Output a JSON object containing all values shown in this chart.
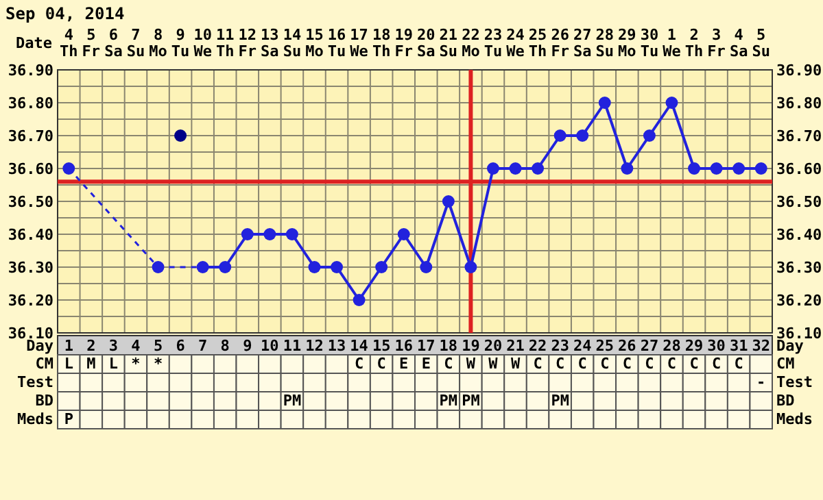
{
  "chart_data": [
    {
      "type": "line",
      "title": "Sep 04, 2014",
      "xlabel": "Date",
      "categories": [
        "4 Th",
        "5 Fr",
        "6 Sa",
        "7 Su",
        "8 Mo",
        "9 Tu",
        "10 We",
        "11 Th",
        "12 Fr",
        "13 Sa",
        "14 Su",
        "15 Mo",
        "16 Tu",
        "17 We",
        "18 Th",
        "19 Fr",
        "20 Sa",
        "21 Su",
        "22 Mo",
        "23 Tu",
        "24 We",
        "25 Th",
        "26 Fr",
        "27 Sa",
        "28 Su",
        "29 Mo",
        "30 Tu",
        "1 We",
        "2 Th",
        "3 Fr",
        "4 Sa",
        "5 Su"
      ],
      "series": [
        {
          "type": "line",
          "color": "#2222dd",
          "values": [
            36.6,
            null,
            null,
            null,
            36.3,
            null,
            36.3,
            36.3,
            36.4,
            36.4,
            36.4,
            36.3,
            36.3,
            36.2,
            36.3,
            36.4,
            36.3,
            36.5,
            36.3,
            36.6,
            36.6,
            36.6,
            36.7,
            36.7,
            36.8,
            36.6,
            36.7,
            36.8,
            36.6,
            36.6,
            36.6,
            36.6
          ]
        },
        {
          "type": "scatter",
          "color": "#000088",
          "values": [
            null,
            null,
            null,
            null,
            null,
            36.7,
            null,
            null,
            null,
            null,
            null,
            null,
            null,
            null,
            null,
            null,
            null,
            null,
            null,
            null,
            null,
            null,
            null,
            null,
            null,
            null,
            null,
            null,
            null,
            null,
            null,
            null
          ]
        }
      ],
      "marker": "circle",
      "ylim": [
        36.1,
        36.9
      ],
      "yticks": [
        {
          "value": 36.1,
          "label": "36.10"
        },
        {
          "value": 36.2,
          "label": "36.20"
        },
        {
          "value": 36.3,
          "label": "36.30"
        },
        {
          "value": 36.4,
          "label": "36.40"
        },
        {
          "value": 36.5,
          "label": "36.50"
        },
        {
          "value": 36.6,
          "label": "36.60"
        },
        {
          "value": 36.7,
          "label": "36.70"
        },
        {
          "value": 36.8,
          "label": "36.80"
        },
        {
          "value": 36.9,
          "label": "36.90"
        }
      ],
      "y2lim": [
        36.1,
        36.9
      ],
      "y2ticks": [
        {
          "value": 36.1,
          "label": "36.10"
        },
        {
          "value": 36.2,
          "label": "36.20"
        },
        {
          "value": 36.3,
          "label": "36.30"
        },
        {
          "value": 36.4,
          "label": "36.40"
        },
        {
          "value": 36.5,
          "label": "36.50"
        },
        {
          "value": 36.6,
          "label": "36.60"
        },
        {
          "value": 36.7,
          "label": "36.70"
        },
        {
          "value": 36.8,
          "label": "36.80"
        },
        {
          "value": 36.9,
          "label": "36.90"
        }
      ],
      "grid": true,
      "x2label": "Day",
      "x2lim": [
        0.5,
        32.5
      ],
      "x2ticks": [
        1,
        2,
        3,
        4,
        5,
        6,
        7,
        8,
        9,
        10,
        11,
        12,
        13,
        14,
        15,
        16,
        17,
        18,
        19,
        20,
        21,
        22,
        23,
        24,
        25,
        26,
        27,
        28,
        29,
        30,
        31,
        32
      ],
      "ref_lines": [
        {
          "axis": "y",
          "value": 36.56,
          "color": "#dd2222"
        },
        {
          "axis": "x",
          "value": "22 Mo",
          "color": "#dd2222"
        }
      ]
    },
    {
      "type": "other",
      "y_categories": [
        "CM",
        "Test",
        "BD",
        "Meds"
      ],
      "cell_labels": [
        [
          "L",
          "M",
          "L",
          "*",
          "*",
          null,
          null,
          null,
          null,
          null,
          null,
          null,
          null,
          "C",
          "C",
          "E",
          "E",
          "C",
          "W",
          "W",
          "W",
          "C",
          "C",
          "C",
          "C",
          "C",
          "C",
          "C",
          "C",
          "C",
          "C",
          null
        ],
        [
          null,
          null,
          null,
          null,
          null,
          null,
          null,
          null,
          null,
          null,
          null,
          null,
          null,
          null,
          null,
          null,
          null,
          null,
          null,
          null,
          null,
          null,
          null,
          null,
          null,
          null,
          null,
          null,
          null,
          null,
          null,
          "-"
        ],
        [
          null,
          null,
          null,
          null,
          null,
          null,
          null,
          null,
          null,
          null,
          "PM",
          null,
          null,
          null,
          null,
          null,
          null,
          "PM",
          "PM",
          null,
          null,
          null,
          "PM",
          null,
          null,
          null,
          null,
          null,
          null,
          null,
          null,
          null
        ],
        [
          "P",
          null,
          null,
          null,
          null,
          null,
          null,
          null,
          null,
          null,
          null,
          null,
          null,
          null,
          null,
          null,
          null,
          null,
          null,
          null,
          null,
          null,
          null,
          null,
          null,
          null,
          null,
          null,
          null,
          null,
          null,
          null
        ]
      ]
    }
  ]
}
